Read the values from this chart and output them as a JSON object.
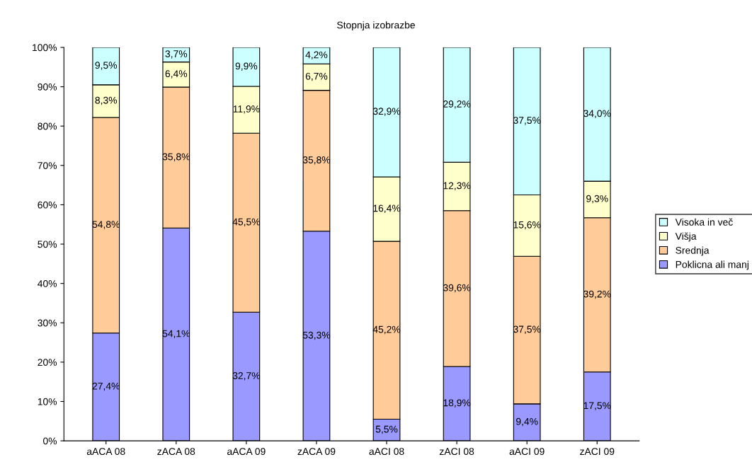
{
  "chart_data": {
    "type": "bar",
    "stacked": true,
    "title": "Stopnja izobrazbe",
    "categories": [
      "aACA 08",
      "zACA 08",
      "aACA 09",
      "zACA 09",
      "aACI 08",
      "zACI 08",
      "aACI 09",
      "zACI 09"
    ],
    "series": [
      {
        "name": "Poklicna ali manj",
        "color": "#9999ff",
        "values": [
          27.4,
          54.1,
          32.7,
          53.3,
          5.5,
          18.9,
          9.4,
          17.5
        ],
        "value_labels": [
          "27,4%",
          "54,1%",
          "32,7%",
          "53,3%",
          "5,5%",
          "18,9%",
          "9,4%",
          "17,5%"
        ]
      },
      {
        "name": "Srednja",
        "color": "#ffcc99",
        "values": [
          54.8,
          35.8,
          45.5,
          35.8,
          45.2,
          39.6,
          37.5,
          39.2
        ],
        "value_labels": [
          "54,8%",
          "35,8%",
          "45,5%",
          "35,8%",
          "45,2%",
          "39,6%",
          "37,5%",
          "39,2%"
        ]
      },
      {
        "name": "Višja",
        "color": "#ffffcc",
        "values": [
          8.3,
          6.4,
          11.9,
          6.7,
          16.4,
          12.3,
          15.6,
          9.3
        ],
        "value_labels": [
          "8,3%",
          "6,4%",
          "11,9%",
          "6,7%",
          "16,4%",
          "12,3%",
          "15,6%",
          "9,3%"
        ]
      },
      {
        "name": "Visoka in več",
        "color": "#ccffff",
        "values": [
          9.5,
          3.7,
          9.9,
          4.2,
          32.9,
          29.2,
          37.5,
          34.0
        ],
        "value_labels": [
          "9,5%",
          "3,7%",
          "9,9%",
          "4,2%",
          "32,9%",
          "29,2%",
          "37,5%",
          "34,0%"
        ]
      }
    ],
    "ylim": [
      0,
      100
    ],
    "yticks": [
      {
        "value": 0,
        "label": "0%"
      },
      {
        "value": 10,
        "label": "10%"
      },
      {
        "value": 20,
        "label": "20%"
      },
      {
        "value": 30,
        "label": "30%"
      },
      {
        "value": 40,
        "label": "40%"
      },
      {
        "value": 50,
        "label": "50%"
      },
      {
        "value": 60,
        "label": "60%"
      },
      {
        "value": 70,
        "label": "70%"
      },
      {
        "value": 80,
        "label": "80%"
      },
      {
        "value": 90,
        "label": "90%"
      },
      {
        "value": 100,
        "label": "100%"
      }
    ],
    "legend": "right",
    "grid": false
  }
}
